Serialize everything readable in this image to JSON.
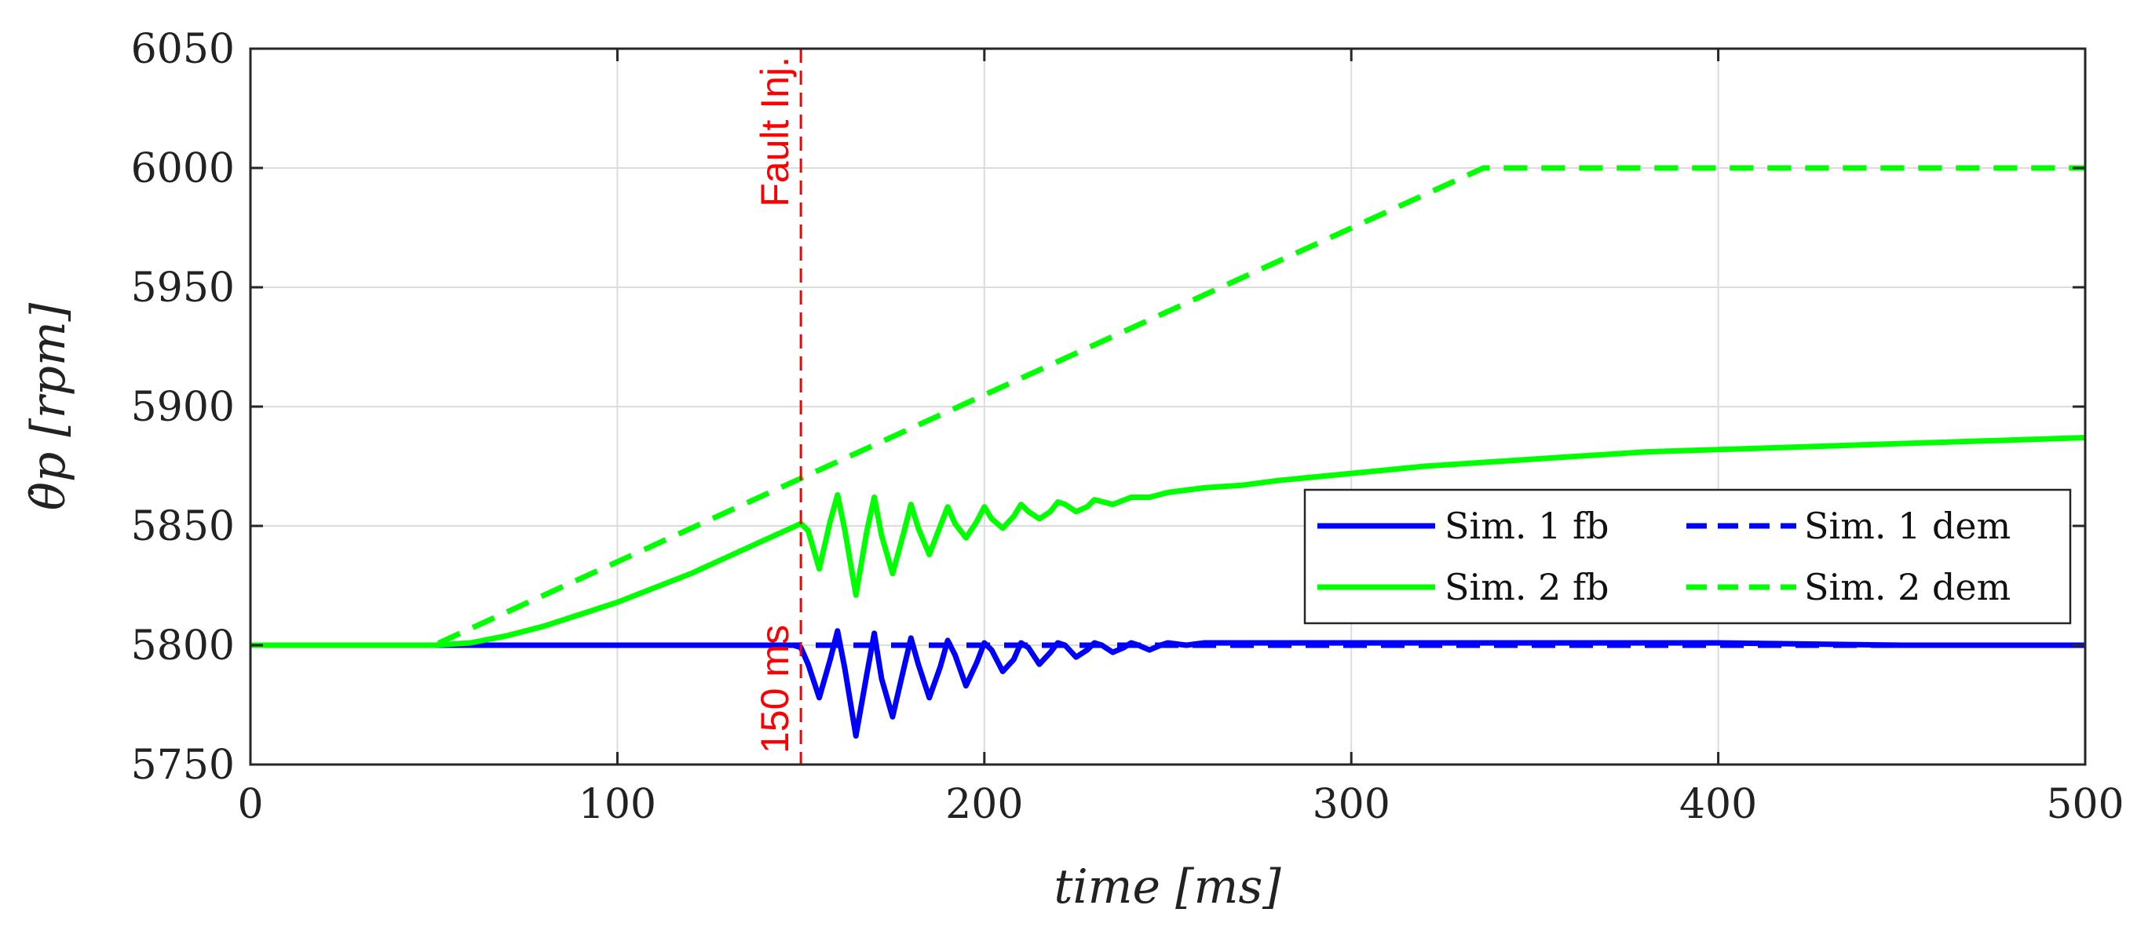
{
  "chart_data": {
    "type": "line",
    "xlabel": "time [ms]",
    "ylabel": "θ̇p [rpm]",
    "xlim": [
      0,
      500
    ],
    "ylim": [
      5750,
      6050
    ],
    "xticks": [
      0,
      100,
      200,
      300,
      400,
      500
    ],
    "yticks": [
      5750,
      5800,
      5850,
      5900,
      5950,
      6000,
      6050
    ],
    "xtick_labels": [
      "0",
      "100",
      "200",
      "300",
      "400",
      "500"
    ],
    "ytick_labels": [
      "5750",
      "5800",
      "5850",
      "5900",
      "5950",
      "6000",
      "6050"
    ],
    "grid": true,
    "legend_position": "center-right",
    "annotations": {
      "fault_x": 150,
      "fault_label": "Fault Inj.",
      "time_label": "150 ms",
      "color": "#ff0000"
    },
    "series": [
      {
        "name": "Sim. 1 fb",
        "color": "#0000ff",
        "style": "solid",
        "x": [
          0,
          148,
          150,
          152,
          155,
          158,
          160,
          162,
          165,
          168,
          170,
          172,
          175,
          178,
          180,
          182,
          185,
          188,
          190,
          192,
          195,
          198,
          200,
          202,
          205,
          208,
          210,
          212,
          215,
          218,
          220,
          222,
          225,
          228,
          230,
          232,
          235,
          238,
          240,
          242,
          245,
          248,
          250,
          255,
          260,
          270,
          300,
          350,
          400,
          450,
          500
        ],
        "y": [
          5800,
          5800,
          5799,
          5792,
          5778,
          5794,
          5806,
          5790,
          5762,
          5788,
          5805,
          5786,
          5770,
          5790,
          5803,
          5792,
          5778,
          5791,
          5802,
          5796,
          5783,
          5793,
          5801,
          5798,
          5789,
          5794,
          5801,
          5799,
          5792,
          5797,
          5801,
          5800,
          5795,
          5798,
          5801,
          5800,
          5797,
          5799,
          5801,
          5800,
          5798,
          5800,
          5801,
          5800,
          5801,
          5801,
          5801,
          5801,
          5801,
          5800,
          5800
        ]
      },
      {
        "name": "Sim. 1 dem",
        "color": "#0000ff",
        "style": "dashed",
        "x": [
          0,
          500
        ],
        "y": [
          5800,
          5800
        ]
      },
      {
        "name": "Sim. 2 fb",
        "color": "#00ff00",
        "style": "solid",
        "x": [
          0,
          50,
          60,
          70,
          80,
          90,
          100,
          110,
          120,
          130,
          140,
          150,
          152,
          155,
          158,
          160,
          162,
          165,
          168,
          170,
          172,
          175,
          178,
          180,
          182,
          185,
          188,
          190,
          192,
          195,
          198,
          200,
          202,
          205,
          208,
          210,
          212,
          215,
          218,
          220,
          222,
          225,
          228,
          230,
          235,
          240,
          245,
          250,
          255,
          260,
          270,
          280,
          300,
          320,
          340,
          360,
          380,
          400,
          420,
          440,
          460,
          480,
          500
        ],
        "y": [
          5800,
          5800,
          5801,
          5804,
          5808,
          5813,
          5818,
          5824,
          5830,
          5837,
          5844,
          5851,
          5848,
          5832,
          5852,
          5863,
          5848,
          5821,
          5848,
          5862,
          5846,
          5830,
          5847,
          5859,
          5849,
          5838,
          5850,
          5858,
          5851,
          5845,
          5852,
          5858,
          5853,
          5849,
          5854,
          5859,
          5856,
          5853,
          5856,
          5860,
          5859,
          5856,
          5858,
          5861,
          5859,
          5862,
          5862,
          5864,
          5865,
          5866,
          5867,
          5869,
          5872,
          5875,
          5877,
          5879,
          5881,
          5882,
          5883,
          5884,
          5885,
          5886,
          5887
        ]
      },
      {
        "name": "Sim. 2 dem",
        "color": "#00ff00",
        "style": "dashed",
        "x": [
          0,
          50,
          336,
          500
        ],
        "y": [
          5800,
          5800,
          6000,
          6000
        ]
      }
    ]
  }
}
